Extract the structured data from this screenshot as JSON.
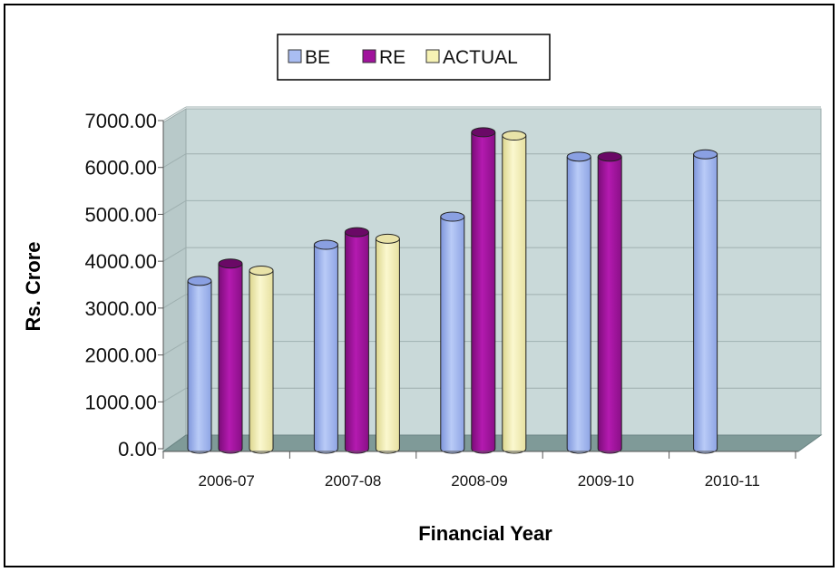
{
  "chart_data": {
    "type": "bar",
    "categories": [
      "2006-07",
      "2007-08",
      "2008-09",
      "2009-10",
      "2010-11"
    ],
    "series": [
      {
        "name": "BE",
        "values": [
          3580,
          4350,
          4950,
          6230,
          6280
        ]
      },
      {
        "name": "RE",
        "values": [
          3950,
          4620,
          6750,
          6230,
          null
        ]
      },
      {
        "name": "ACTUAL",
        "values": [
          3800,
          4480,
          6680,
          null,
          null
        ]
      }
    ],
    "xlabel": "Financial Year",
    "ylabel": "Rs. Crore",
    "ylim": [
      0,
      7000
    ],
    "yticks": [
      0,
      1000,
      2000,
      3000,
      4000,
      5000,
      6000,
      7000
    ],
    "ytick_labels": [
      "0.00",
      "1000.00",
      "2000.00",
      "3000.00",
      "4000.00",
      "5000.00",
      "6000.00",
      "7000.00"
    ],
    "grid": true,
    "legend_position": "top-center",
    "colors": {
      "BE": "#a9bdf2",
      "RE": "#a0139c",
      "ACTUAL": "#f6f2b4",
      "wall": "#c9d9d9",
      "floor": "#7f9a98"
    }
  }
}
